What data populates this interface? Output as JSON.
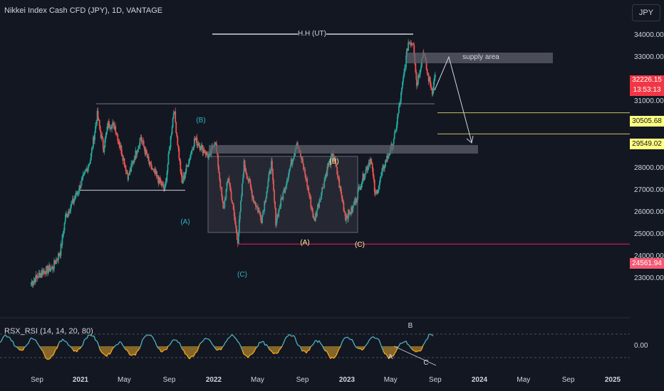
{
  "header": {
    "title": "Nikkei Index Cash CFD (JPY), 1D, VANTAGE",
    "currency_button": "JPY"
  },
  "rsi_panel": {
    "label": "RSX_RSI (14, 14, 20, 80)",
    "zero_label": "0.00",
    "annotations": {
      "A": "A",
      "B": "B",
      "C": "C"
    }
  },
  "colors": {
    "background": "#131722",
    "up": "#26a69a",
    "down": "#ef5350",
    "rsi_line": "#4fb3bf",
    "rsi_low": "#f6a51a"
  },
  "price_tags": {
    "current": {
      "price": "32226.15",
      "countdown": "13:53:13"
    },
    "level1": "30505.68",
    "level2": "29549.02",
    "level3": "24561.94"
  },
  "annotations": {
    "hh": "H.H  (UT)",
    "supply": "supply area",
    "B_teal": "(B)",
    "A_teal": "(A)",
    "C_teal": "(C)",
    "B_yellow": "(B)",
    "A_yellow": "(A)",
    "C_yellow": "(C)"
  },
  "chart_data": {
    "type": "candlestick",
    "title": "Nikkei Index Cash CFD (JPY), 1D, VANTAGE",
    "x_ticks": [
      "Sep",
      "2021",
      "May",
      "Sep",
      "2022",
      "May",
      "Sep",
      "2023",
      "May",
      "Sep",
      "2024",
      "May",
      "Sep",
      "2025"
    ],
    "y_ticks": [
      "34000.00",
      "33000.00",
      "32000.00",
      "31000.00",
      "30000.00",
      "29000.00",
      "28000.00",
      "27000.00",
      "26000.00",
      "25000.00",
      "24000.00",
      "23000.00"
    ],
    "ylim": [
      22000,
      34800
    ],
    "price_path": [
      [
        "2020-08-15",
        22800
      ],
      [
        "2020-09-15",
        23300
      ],
      [
        "2020-10-15",
        23500
      ],
      [
        "2020-11-05",
        24200
      ],
      [
        "2020-11-20",
        25800
      ],
      [
        "2020-12-15",
        26600
      ],
      [
        "2021-01-10",
        27600
      ],
      [
        "2021-01-28",
        28400
      ],
      [
        "2021-02-16",
        30400
      ],
      [
        "2021-03-05",
        28900
      ],
      [
        "2021-03-18",
        30000
      ],
      [
        "2021-04-05",
        29900
      ],
      [
        "2021-05-12",
        27600
      ],
      [
        "2021-06-15",
        29400
      ],
      [
        "2021-07-10",
        28100
      ],
      [
        "2021-08-20",
        27000
      ],
      [
        "2021-09-14",
        30700
      ],
      [
        "2021-10-06",
        27300
      ],
      [
        "2021-11-10",
        29300
      ],
      [
        "2021-12-20",
        28500
      ],
      [
        "2022-01-05",
        29300
      ],
      [
        "2022-01-27",
        26100
      ],
      [
        "2022-02-10",
        27600
      ],
      [
        "2022-03-08",
        24700
      ],
      [
        "2022-03-25",
        28200
      ],
      [
        "2022-04-20",
        26600
      ],
      [
        "2022-05-12",
        25700
      ],
      [
        "2022-06-08",
        28200
      ],
      [
        "2022-06-20",
        25600
      ],
      [
        "2022-08-17",
        29200
      ],
      [
        "2022-09-10",
        27600
      ],
      [
        "2022-10-03",
        25600
      ],
      [
        "2022-11-10",
        28100
      ],
      [
        "2022-11-25",
        28600
      ],
      [
        "2022-12-28",
        25800
      ],
      [
        "2023-01-15",
        26100
      ],
      [
        "2023-02-10",
        27400
      ],
      [
        "2023-03-08",
        28500
      ],
      [
        "2023-03-20",
        26700
      ],
      [
        "2023-04-15",
        28200
      ],
      [
        "2023-05-10",
        29200
      ],
      [
        "2023-05-30",
        31300
      ],
      [
        "2023-06-19",
        33700
      ],
      [
        "2023-07-03",
        33700
      ],
      [
        "2023-07-12",
        31800
      ],
      [
        "2023-07-31",
        33300
      ],
      [
        "2023-08-10",
        32300
      ],
      [
        "2023-08-24",
        31500
      ],
      [
        "2023-09-01",
        32226
      ]
    ],
    "levels": {
      "hh_ut": 34000,
      "supply_area": [
        32900,
        33100
      ],
      "horizontal_1": 31000,
      "level_30505": 30505.68,
      "level_29549": 29549.02,
      "level_24561": 24561.94,
      "support_2021": 27000
    },
    "series": [
      {
        "name": "RSX_RSI (14, 14, 20, 80)"
      }
    ]
  }
}
